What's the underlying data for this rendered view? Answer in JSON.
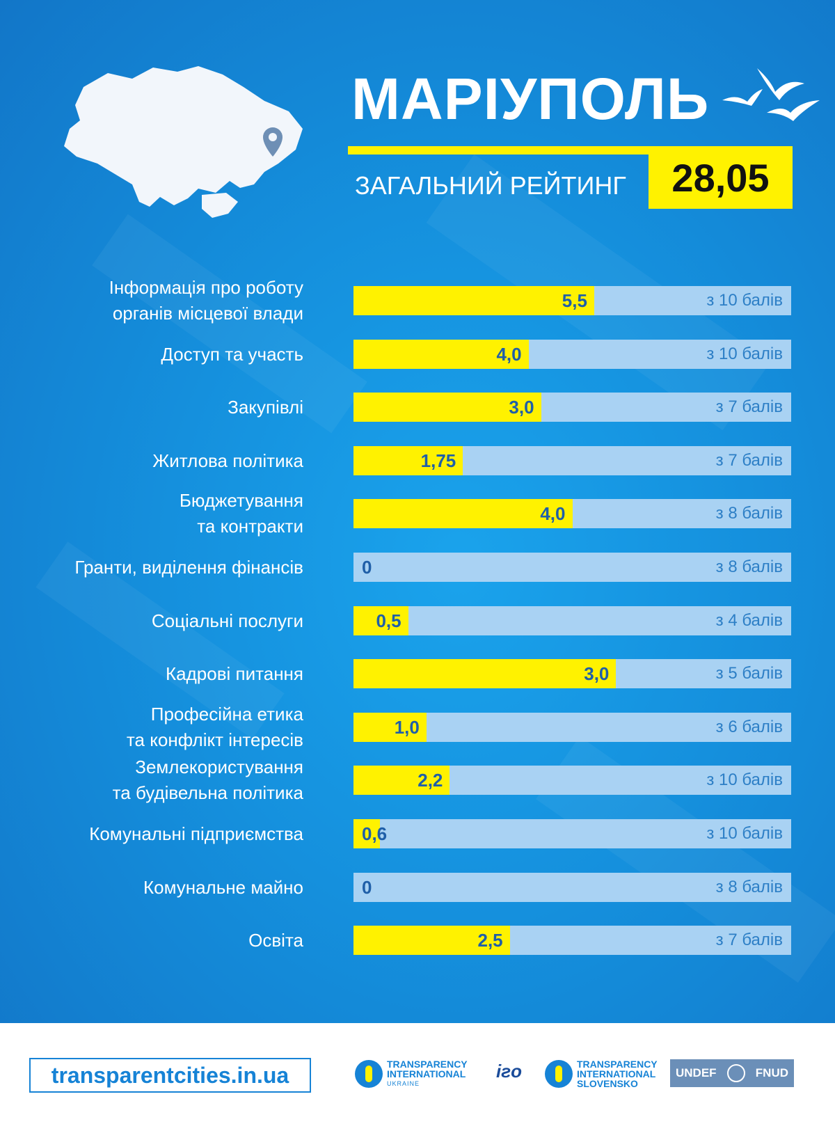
{
  "header": {
    "city": "МАРІУПОЛЬ",
    "rating_label": "ЗАГАЛЬНИЙ РЕЙТИНГ",
    "rating_value": "28,05",
    "map_icon": "ukraine-map-icon",
    "pin_icon": "location-pin-icon",
    "decor_icon": "seagulls-icon"
  },
  "colors": {
    "background": "#1590dd",
    "accent_yellow": "#fff200",
    "track": "#a9d2f3",
    "value_text": "#1f5fa8",
    "footer_link": "#1683d6"
  },
  "chart_data": {
    "type": "bar",
    "orientation": "horizontal",
    "categories": [
      "Інформація про роботу органів місцевої влади",
      "Доступ та участь",
      "Закупівлі",
      "Житлова політика",
      "Бюджетування та контракти",
      "Гранти, виділення фінансів",
      "Соціальні послуги",
      "Кадрові питання",
      "Професійна етика та конфлікт інтересів",
      "Землекористування та будівельна політика",
      "Комунальні підприємства",
      "Комунальне майно",
      "Освіта"
    ],
    "category_lines": [
      [
        "Інформація про роботу",
        "органів місцевої влади"
      ],
      [
        "Доступ та участь"
      ],
      [
        "Закупівлі"
      ],
      [
        "Житлова політика"
      ],
      [
        "Бюджетування ",
        "та контракти"
      ],
      [
        "Гранти, виділення фінансів"
      ],
      [
        "Соціальні послуги"
      ],
      [
        "Кадрові питання"
      ],
      [
        "Професійна етика",
        "та конфлікт інтересів"
      ],
      [
        "Землекористування",
        "та будівельна політика"
      ],
      [
        "Комунальні підприємства"
      ],
      [
        "Комунальне майно"
      ],
      [
        "Освіта"
      ]
    ],
    "values": [
      5.5,
      4.0,
      3.0,
      1.75,
      4.0,
      0,
      0.5,
      3.0,
      1.0,
      2.2,
      0.6,
      0,
      2.5
    ],
    "value_labels": [
      "5,5",
      "4,0",
      "3,0",
      "1,75",
      "4,0",
      "0",
      "0,5",
      "3,0",
      "1,0",
      "2,2",
      "0,6",
      "0",
      "2,5"
    ],
    "max_values": [
      10,
      10,
      7,
      7,
      8,
      8,
      4,
      5,
      6,
      10,
      10,
      8,
      7
    ],
    "max_labels": [
      "з 10 балів",
      "з 10 балів",
      "з 7 балів",
      "з 7 балів",
      "з 8 балів",
      "з 8 балів",
      "з 4 балів",
      "з 5 балів",
      "з 6 балів",
      "з 10 балів",
      "з 10 балів",
      "з 8 балів",
      "з 7 балів"
    ]
  },
  "footer": {
    "site": "transparentcities.in.ua",
    "logo1": {
      "line1": "TRANSPARENCY",
      "line2": "INTERNATIONAL",
      "line3": "UKRAINE"
    },
    "logo2": {
      "text": "ігo"
    },
    "logo3": {
      "line1": "TRANSPARENCY",
      "line2": "INTERNATIONAL",
      "line3": "SLOVENSKO"
    },
    "logo4": {
      "left": "UNDEF",
      "right": "FNUD"
    }
  }
}
